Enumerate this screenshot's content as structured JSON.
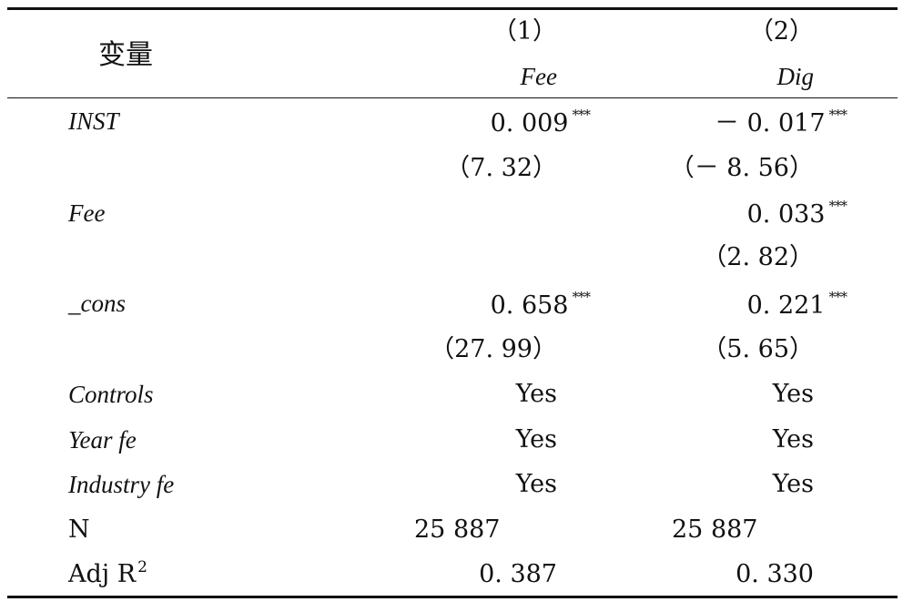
{
  "header": {
    "variable": "变量",
    "col1_num": "（1）",
    "col2_num": "（2）",
    "col1_name": "Fee",
    "col2_name": "Dig"
  },
  "rows": {
    "inst": {
      "label": "INST",
      "c1": "0. 009",
      "c1_stars": "***",
      "c2": "－ 0. 017",
      "c2_stars": "***"
    },
    "inst_t": {
      "c1": "（7. 32）",
      "c2": "（－ 8. 56）"
    },
    "fee": {
      "label": "Fee",
      "c2": "0. 033",
      "c2_stars": "***"
    },
    "fee_t": {
      "c2": "（2. 82）"
    },
    "cons": {
      "label": "_cons",
      "c1": "0. 658",
      "c1_stars": "***",
      "c2": "0. 221",
      "c2_stars": "***"
    },
    "cons_t": {
      "c1": "（27. 99）",
      "c2": "（5. 65）"
    },
    "controls": {
      "label": "Controls",
      "c1": "Yes",
      "c2": "Yes"
    },
    "year_fe": {
      "label": "Year fe",
      "c1": "Yes",
      "c2": "Yes"
    },
    "industry_fe": {
      "label": "Industry fe",
      "c1": "Yes",
      "c2": "Yes"
    },
    "n": {
      "label": "N",
      "c1": "25 887",
      "c2": "25 887"
    },
    "adj_r2": {
      "label": "Adj R",
      "label_sup": "2",
      "c1": "0. 387",
      "c2": "0. 330"
    }
  }
}
